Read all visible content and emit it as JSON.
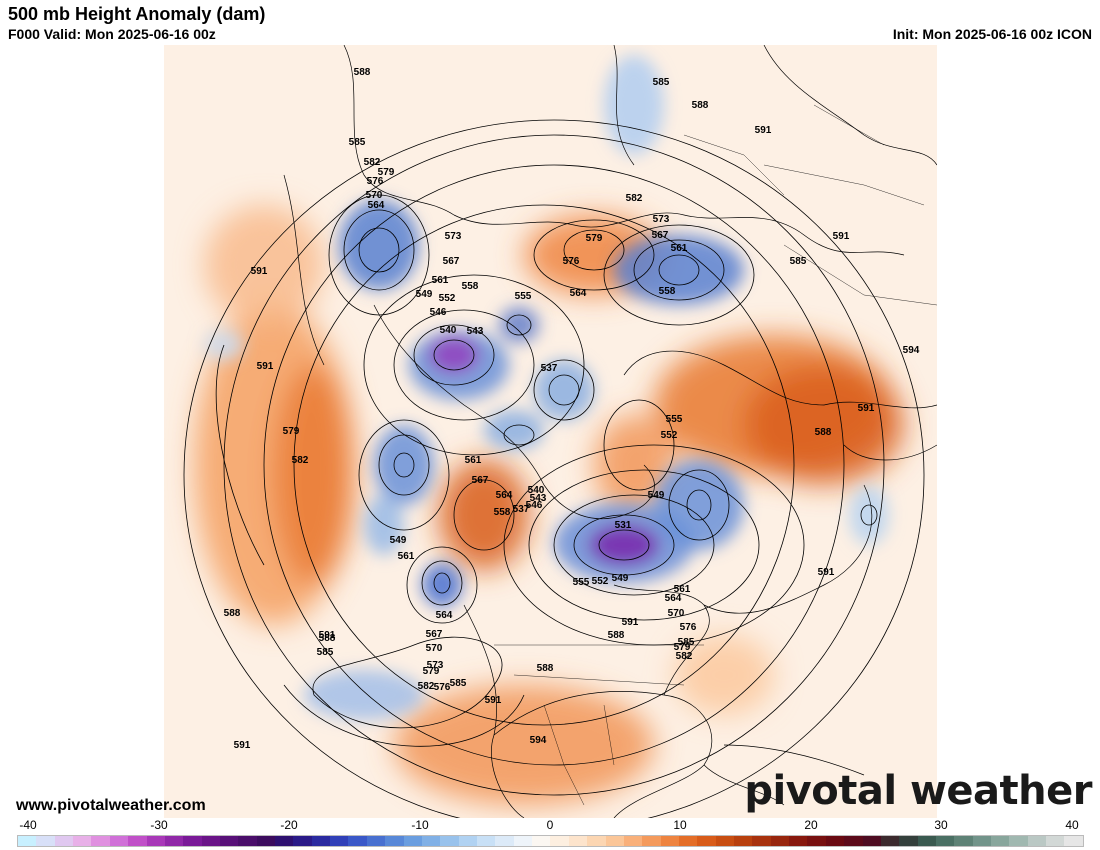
{
  "header": {
    "title": "500 mb Height Anomaly (dam)",
    "valid": "F000 Valid: Mon 2025-06-16 00z",
    "init": "Init: Mon 2025-06-16 00z ICON"
  },
  "footer": {
    "website": "www.pivotalweather.com",
    "brand": "pivotal weather"
  },
  "colorbar": {
    "tick_labels": [
      "-40",
      "-30",
      "-20",
      "-10",
      "0",
      "10",
      "20",
      "30",
      "40"
    ],
    "colors": [
      "#c8f0ff",
      "#d8e0f8",
      "#e0c8f0",
      "#e8b0e8",
      "#e090e0",
      "#d070d8",
      "#c050c8",
      "#a838b8",
      "#9028a8",
      "#7a1a98",
      "#6a1488",
      "#581078",
      "#4a0e6a",
      "#3c0c5e",
      "#2e1070",
      "#2a1a88",
      "#2a2aa0",
      "#3040b8",
      "#3a58c8",
      "#4870d0",
      "#5888d8",
      "#6a9ee0",
      "#80b0e6",
      "#98c2ec",
      "#b0d2f2",
      "#c8e0f6",
      "#dceaf8",
      "#eef4fa",
      "#fbf7f2",
      "#fdefe0",
      "#fde4cc",
      "#fcd6b2",
      "#fbc698",
      "#f9b07a",
      "#f49a5c",
      "#ee8440",
      "#e46e28",
      "#d85c1a",
      "#c84e12",
      "#b8400e",
      "#a8320e",
      "#98260e",
      "#88180e",
      "#781010",
      "#6a0a12",
      "#5c0a1a",
      "#4e0c22",
      "#3c2a2e",
      "#34403c",
      "#3a5a50",
      "#4a7064",
      "#5e8276",
      "#72948a",
      "#88a69c",
      "#a0b8b0",
      "#bac8c4",
      "#d2d8d6",
      "#e6e6e6"
    ]
  },
  "map": {
    "contour_labels": [
      "588",
      "585",
      "582",
      "579",
      "576",
      "570",
      "564",
      "591",
      "573",
      "567",
      "561",
      "558",
      "549",
      "552",
      "546",
      "540",
      "543",
      "555",
      "537",
      "585",
      "588",
      "591",
      "582",
      "579",
      "576",
      "573",
      "567",
      "561",
      "558",
      "564",
      "591",
      "594",
      "591",
      "588",
      "585",
      "555",
      "552",
      "561",
      "567",
      "564",
      "558",
      "546",
      "540",
      "543",
      "549",
      "537",
      "531",
      "555",
      "552",
      "549",
      "561",
      "564",
      "567",
      "570",
      "573",
      "576",
      "579",
      "582",
      "585",
      "588",
      "591",
      "594",
      "591",
      "588",
      "585",
      "582",
      "579",
      "576",
      "570",
      "564",
      "561",
      "549",
      "591",
      "588",
      "585",
      "582",
      "579",
      "591",
      "588",
      "591",
      "591"
    ],
    "colors": {
      "land_outline": "#000000",
      "contour": "#000000",
      "map_background": "#fdf3ea"
    }
  }
}
